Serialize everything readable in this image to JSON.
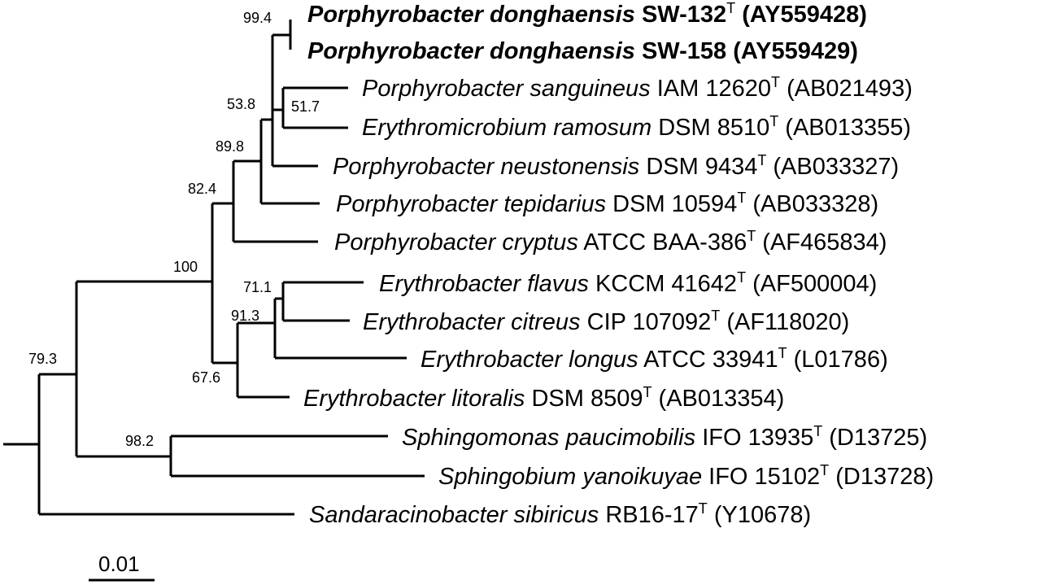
{
  "taxa": [
    {
      "id": "sw132",
      "genus": "Porphyrobacter",
      "species": "donghaensis",
      "strain": "SW-132",
      "type": true,
      "acc": "(AY559428)",
      "bold": true
    },
    {
      "id": "sw158",
      "genus": "Porphyrobacter",
      "species": "donghaensis",
      "strain": "SW-158",
      "type": false,
      "acc": "(AY559429)",
      "bold": true
    },
    {
      "id": "sanguineus",
      "genus": "Porphyrobacter",
      "species": "sanguineus",
      "strain": "IAM 12620",
      "type": true,
      "acc": "(AB021493)",
      "bold": false
    },
    {
      "id": "ramosum",
      "genus": "Erythromicrobium",
      "species": "ramosum",
      "strain": "DSM 8510",
      "type": true,
      "acc": "(AB013355)",
      "bold": false
    },
    {
      "id": "neustonensis",
      "genus": "Porphyrobacter",
      "species": "neustonensis",
      "strain": "DSM 9434",
      "type": true,
      "acc": "(AB033327)",
      "bold": false
    },
    {
      "id": "tepidarius",
      "genus": "Porphyrobacter",
      "species": "tepidarius",
      "strain": "DSM 10594",
      "type": true,
      "acc": "(AB033328)",
      "bold": false
    },
    {
      "id": "cryptus",
      "genus": "Porphyrobacter",
      "species": "cryptus",
      "strain": "ATCC BAA-386",
      "type": true,
      "acc": "(AF465834)",
      "bold": false
    },
    {
      "id": "flavus",
      "genus": "Erythrobacter",
      "species": "flavus",
      "strain": "KCCM 41642",
      "type": true,
      "acc": "(AF500004)",
      "bold": false
    },
    {
      "id": "citreus",
      "genus": "Erythrobacter",
      "species": "citreus",
      "strain": "CIP 107092",
      "type": true,
      "acc": "(AF118020)",
      "bold": false
    },
    {
      "id": "longus",
      "genus": "Erythrobacter",
      "species": "longus",
      "strain": "ATCC 33941",
      "type": true,
      "acc": "(L01786)",
      "bold": false
    },
    {
      "id": "litoralis",
      "genus": "Erythrobacter",
      "species": "litoralis",
      "strain": "DSM 8509",
      "type": true,
      "acc": "(AB013354)",
      "bold": false
    },
    {
      "id": "paucimobilis",
      "genus": "Sphingomonas",
      "species": "paucimobilis",
      "strain": "IFO 13935",
      "type": true,
      "acc": "(D13725)",
      "bold": false
    },
    {
      "id": "yanoikuyae",
      "genus": "Sphingobium",
      "species": "yanoikuyae",
      "strain": "IFO 15102",
      "type": true,
      "acc": "(D13728)",
      "bold": false
    },
    {
      "id": "sibiricus",
      "genus": "Sandaracinobacter",
      "species": "sibiricus",
      "strain": "RB16-17",
      "type": true,
      "acc": "(Y10678)",
      "bold": false
    }
  ],
  "type_marker": "T",
  "bootstraps": {
    "donghaensis": "99.4",
    "sanguineus_ramosum": "51.7",
    "porphyro_core": "53.8",
    "neustonensis_group": "89.8",
    "tepidarius_group": "82.4",
    "porphyro_erythro": "100",
    "flavus_citreus": "71.1",
    "flavus_longus": "91.3",
    "erythrobacter": "67.6",
    "sphingo": "98.2",
    "ingroup": "79.3"
  },
  "scale_bar": {
    "label": "0.01"
  }
}
